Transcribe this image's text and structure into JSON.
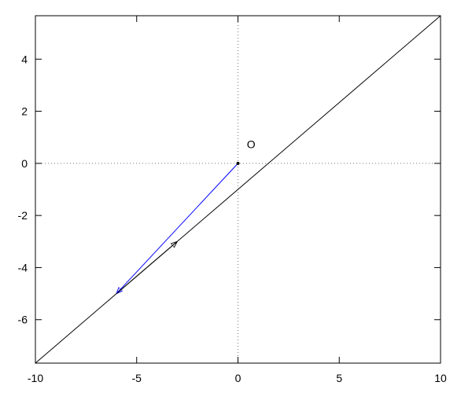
{
  "chart_data": {
    "type": "line",
    "title": "",
    "xlabel": "",
    "ylabel": "",
    "xlim": [
      -10,
      10
    ],
    "ylim": [
      -7.667,
      5.667
    ],
    "xticks": [
      -10,
      -5,
      0,
      5,
      10
    ],
    "xtick_labels": [
      "-10",
      "-5",
      "0",
      "5",
      "10"
    ],
    "yticks": [
      -6,
      -4,
      -2,
      0,
      2,
      4
    ],
    "ytick_labels": [
      "-6",
      "-4",
      "-2",
      "0",
      "2",
      "4"
    ],
    "grid": false,
    "zero_axes": "dotted",
    "series": [
      {
        "kind": "line",
        "x": [
          -10,
          10
        ],
        "y": [
          -7.667,
          5.667
        ],
        "color": "#000000"
      },
      {
        "kind": "vector",
        "from": [
          0,
          0
        ],
        "to": [
          -6,
          -5
        ],
        "color": "#0000ff"
      },
      {
        "kind": "vector",
        "from": [
          -6,
          -5
        ],
        "to": [
          -3,
          -3
        ],
        "color": "#000000"
      }
    ],
    "points": [
      {
        "x": 0,
        "y": 0,
        "color": "#000000"
      }
    ],
    "annotations": [
      {
        "text": "O",
        "x": 0.4,
        "y": 0.5
      }
    ]
  }
}
